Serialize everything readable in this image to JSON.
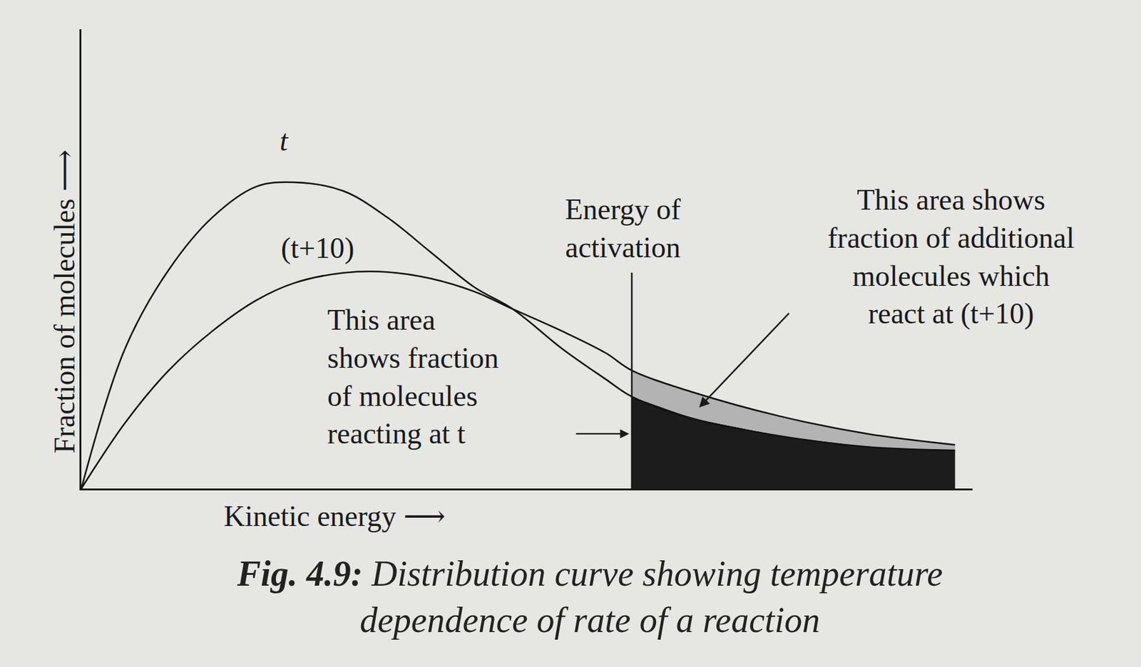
{
  "chart_data": {
    "type": "line",
    "caption_label": "Fig. 4.9:",
    "title": [
      "Distribution curve showing temperature",
      "dependence of rate of a reaction"
    ],
    "xlabel": "Kinetic energy ⟶",
    "ylabel": "Fraction of molecules ⟶",
    "x": [
      0,
      0.5,
      1,
      1.5,
      2,
      2.44,
      3,
      3.5,
      4,
      4.5,
      4.94,
      5.5,
      6,
      6.3,
      7,
      8,
      9,
      10
    ],
    "series": [
      {
        "name": "t",
        "color": "#111111",
        "values": [
          0,
          3.2,
          5.0,
          6.2,
          6.9,
          7.0,
          6.8,
          6.2,
          5.4,
          4.6,
          4.1,
          3.2,
          2.5,
          2.1,
          1.6,
          1.2,
          0.95,
          0.87
        ]
      },
      {
        "name": "(t+10)",
        "color": "#111111",
        "values": [
          0,
          1.5,
          2.7,
          3.6,
          4.3,
          4.7,
          4.93,
          4.95,
          4.8,
          4.5,
          4.1,
          3.6,
          3.1,
          2.7,
          2.2,
          1.65,
          1.25,
          1.0
        ]
      }
    ],
    "activation_energy": 6.3,
    "activation_label": [
      "Energy of",
      "activation"
    ],
    "area_label_t": [
      "This area",
      "shows fraction",
      "of molecules",
      "reacting at t"
    ],
    "area_label_t10": [
      "This area shows",
      "fraction of additional",
      "molecules which",
      "react at (t+10)"
    ],
    "xlim": [
      0,
      10.2
    ],
    "ylim": [
      0,
      10.5
    ],
    "xticks": [],
    "yticks": [],
    "tick_labels": false,
    "grid": false
  }
}
